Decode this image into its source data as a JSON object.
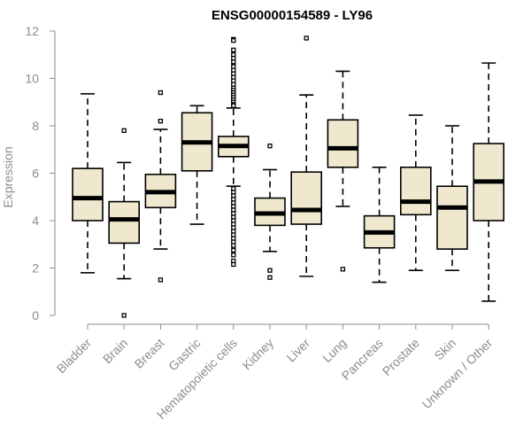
{
  "chart_data": {
    "type": "boxplot",
    "title": "ENSG00000154589 - LY96",
    "xlabel": "",
    "ylabel": "Expression",
    "ylim": [
      0,
      12
    ],
    "yticks": [
      0,
      2,
      4,
      6,
      8,
      10,
      12
    ],
    "box_color": "#efe8cf",
    "categories": [
      "Bladder",
      "Brain",
      "Breast",
      "Gastric",
      "Hematopoietic cells",
      "Kidney",
      "Liver",
      "Lung",
      "Pancreas",
      "Prostate",
      "Skin",
      "Unknown / Other"
    ],
    "boxes": [
      {
        "category": "Bladder",
        "whisker_low": 1.8,
        "q1": 4.0,
        "median": 4.95,
        "q3": 6.2,
        "whisker_high": 9.35,
        "outliers": []
      },
      {
        "category": "Brain",
        "whisker_low": 1.55,
        "q1": 3.05,
        "median": 4.05,
        "q3": 4.8,
        "whisker_high": 6.45,
        "outliers": [
          7.8,
          0.0
        ]
      },
      {
        "category": "Breast",
        "whisker_low": 2.8,
        "q1": 4.55,
        "median": 5.2,
        "q3": 5.95,
        "whisker_high": 7.85,
        "outliers": [
          9.4,
          8.2,
          1.5
        ]
      },
      {
        "category": "Gastric",
        "whisker_low": 3.85,
        "q1": 6.1,
        "median": 7.3,
        "q3": 8.55,
        "whisker_high": 8.85,
        "outliers": []
      },
      {
        "category": "Hematopoietic cells",
        "whisker_low": 5.45,
        "q1": 6.7,
        "median": 7.15,
        "q3": 7.55,
        "whisker_high": 8.75,
        "outliers": [
          11.65,
          11.6,
          11.2,
          11.0,
          10.85,
          10.7,
          10.5,
          10.35,
          10.2,
          10.05,
          9.9,
          9.75,
          9.6,
          9.5,
          9.4,
          9.3,
          9.2,
          9.1,
          9.0,
          8.9,
          8.85,
          5.35,
          5.2,
          5.05,
          4.9,
          4.75,
          4.6,
          4.45,
          4.3,
          4.15,
          4.0,
          3.85,
          3.7,
          3.55,
          3.4,
          3.25,
          3.1,
          2.95,
          2.75,
          2.55,
          2.3,
          2.15
        ]
      },
      {
        "category": "Kidney",
        "whisker_low": 2.7,
        "q1": 3.8,
        "median": 4.3,
        "q3": 4.95,
        "whisker_high": 6.15,
        "outliers": [
          7.15,
          1.9,
          1.6
        ]
      },
      {
        "category": "Liver",
        "whisker_low": 1.65,
        "q1": 3.85,
        "median": 4.45,
        "q3": 6.05,
        "whisker_high": 9.3,
        "outliers": [
          11.7
        ]
      },
      {
        "category": "Lung",
        "whisker_low": 4.6,
        "q1": 6.25,
        "median": 7.05,
        "q3": 8.25,
        "whisker_high": 10.3,
        "outliers": [
          1.95
        ]
      },
      {
        "category": "Pancreas",
        "whisker_low": 1.4,
        "q1": 2.85,
        "median": 3.5,
        "q3": 4.2,
        "whisker_high": 6.25,
        "outliers": []
      },
      {
        "category": "Prostate",
        "whisker_low": 1.9,
        "q1": 4.25,
        "median": 4.8,
        "q3": 6.25,
        "whisker_high": 8.45,
        "outliers": []
      },
      {
        "category": "Skin",
        "whisker_low": 1.9,
        "q1": 2.8,
        "median": 4.55,
        "q3": 5.45,
        "whisker_high": 8.0,
        "outliers": []
      },
      {
        "category": "Unknown / Other",
        "whisker_low": 0.6,
        "q1": 4.0,
        "median": 5.65,
        "q3": 7.25,
        "whisker_high": 10.65,
        "outliers": []
      }
    ]
  }
}
